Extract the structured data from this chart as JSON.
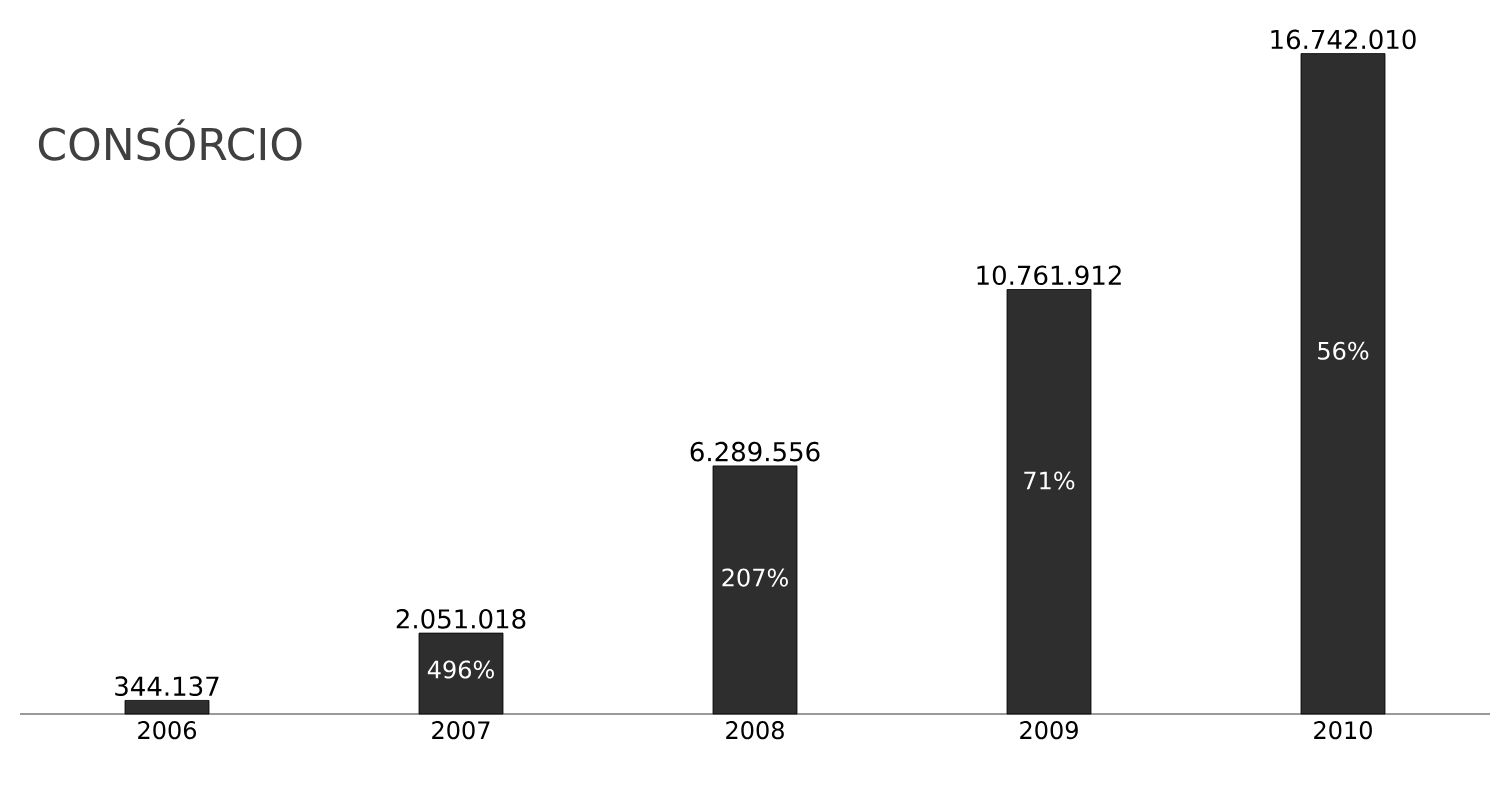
{
  "chart_data": {
    "type": "bar",
    "title": "CONSÓRCIO",
    "categories": [
      "2006",
      "2007",
      "2008",
      "2009",
      "2010"
    ],
    "values": [
      344137,
      2051018,
      6289556,
      10761912,
      16742010
    ],
    "value_labels": [
      "344.137",
      "2.051.018",
      "6.289.556",
      "10.761.912",
      "16.742.010"
    ],
    "color": "#2e2e2e",
    "annotations": [
      "496%",
      "207%",
      "71%",
      "56%"
    ]
  }
}
